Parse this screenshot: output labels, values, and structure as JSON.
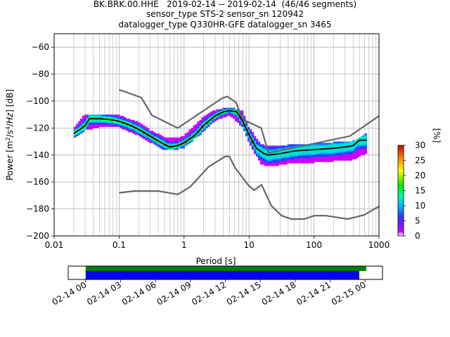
{
  "title": {
    "line1": "BK.BRK.00.HHE   2019-02-14 -- 2019-02-14  (46/46 segments)",
    "line2": "sensor_type STS-2 sensor_sn 120942",
    "line3": "datalogger_type Q330HR-GFE datalogger_sn 3465"
  },
  "chart_data": [
    {
      "type": "heatmap",
      "subtype": "probabilistic-power-spectral-density",
      "xlabel": "Period [s]",
      "ylabel": "Power [m^2/s^4/Hz] [dB]",
      "xscale": "log",
      "xlim": [
        0.01,
        1000
      ],
      "ylim": [
        -200,
        -50
      ],
      "xticks": [
        0.01,
        0.1,
        1,
        10,
        100,
        1000
      ],
      "xtick_labels": [
        "0.01",
        "0.1",
        "1",
        "10",
        "100",
        "1000"
      ],
      "yticks": [
        -200,
        -180,
        -160,
        -140,
        -120,
        -100,
        -80,
        -60
      ],
      "ytick_labels": [
        "−200",
        "−180",
        "−160",
        "−140",
        "−120",
        "−100",
        "−80",
        "−60"
      ],
      "grid": true,
      "colorbar": {
        "label": "[%]",
        "min": 0,
        "max": 30,
        "ticks": [
          0,
          5,
          10,
          15,
          20,
          25,
          30
        ],
        "colors": [
          "#ffffff",
          "#cc00ff",
          "#0000ff",
          "#00b4ff",
          "#00ff9a",
          "#00e600",
          "#ffff00",
          "#ff8c00",
          "#d00000"
        ]
      },
      "mode_curve": {
        "name": "mode",
        "color": "#000000",
        "points": [
          [
            0.02,
            -124
          ],
          [
            0.025,
            -121
          ],
          [
            0.03,
            -118
          ],
          [
            0.035,
            -113
          ],
          [
            0.05,
            -113
          ],
          [
            0.08,
            -114
          ],
          [
            0.1,
            -115
          ],
          [
            0.15,
            -118
          ],
          [
            0.2,
            -121
          ],
          [
            0.3,
            -126
          ],
          [
            0.45,
            -131
          ],
          [
            0.6,
            -134
          ],
          [
            0.8,
            -133
          ],
          [
            1.0,
            -131
          ],
          [
            1.5,
            -125
          ],
          [
            2.0,
            -118
          ],
          [
            3.0,
            -111
          ],
          [
            4.0,
            -108
          ],
          [
            5.0,
            -107
          ],
          [
            6.5,
            -108
          ],
          [
            8.0,
            -115
          ],
          [
            10.0,
            -125
          ],
          [
            13.0,
            -135
          ],
          [
            17.0,
            -139
          ],
          [
            20.0,
            -140
          ],
          [
            30.0,
            -139
          ],
          [
            50.0,
            -137
          ],
          [
            100.0,
            -136
          ],
          [
            200.0,
            -135
          ],
          [
            300.0,
            -134
          ],
          [
            400.0,
            -133
          ],
          [
            500.0,
            -129
          ],
          [
            650.0,
            -129
          ]
        ]
      },
      "density_band": {
        "name": "psd-density",
        "points": [
          [
            0.02,
            -127,
            -120
          ],
          [
            0.03,
            -121,
            -110
          ],
          [
            0.05,
            -119,
            -110
          ],
          [
            0.1,
            -119,
            -111
          ],
          [
            0.2,
            -125,
            -116
          ],
          [
            0.3,
            -130,
            -122
          ],
          [
            0.5,
            -136,
            -127
          ],
          [
            0.8,
            -135,
            -128
          ],
          [
            1.0,
            -134,
            -126
          ],
          [
            2.0,
            -122,
            -112
          ],
          [
            3.0,
            -114,
            -107
          ],
          [
            5.0,
            -110,
            -105
          ],
          [
            8.0,
            -119,
            -108
          ],
          [
            10.0,
            -130,
            -120
          ],
          [
            15.0,
            -146,
            -132
          ],
          [
            20.0,
            -148,
            -134
          ],
          [
            40.0,
            -146,
            -133
          ],
          [
            100.0,
            -145,
            -132
          ],
          [
            200.0,
            -144,
            -131
          ],
          [
            400.0,
            -143,
            -130
          ],
          [
            650.0,
            -138,
            -124
          ]
        ]
      },
      "noise_models": [
        {
          "name": "NHNM",
          "color": "#666666",
          "points": [
            [
              0.1,
              -91.5
            ],
            [
              0.22,
              -97.4
            ],
            [
              0.32,
              -110.5
            ],
            [
              0.8,
              -120.0
            ],
            [
              3.8,
              -98.0
            ],
            [
              4.6,
              -96.5
            ],
            [
              6.3,
              -101.0
            ],
            [
              7.9,
              -113.5
            ],
            [
              15.4,
              -120.0
            ],
            [
              20.0,
              -138.5
            ],
            [
              354.8,
              -126.0
            ],
            [
              1000.0,
              -111.0
            ]
          ]
        },
        {
          "name": "NLNM",
          "color": "#666666",
          "points": [
            [
              0.1,
              -168.0
            ],
            [
              0.17,
              -166.7
            ],
            [
              0.4,
              -166.7
            ],
            [
              0.8,
              -169.2
            ],
            [
              1.24,
              -163.7
            ],
            [
              2.4,
              -148.6
            ],
            [
              4.3,
              -141.1
            ],
            [
              5.0,
              -141.1
            ],
            [
              6.0,
              -149.0
            ],
            [
              10.0,
              -163.0
            ],
            [
              12.0,
              -166.0
            ],
            [
              15.6,
              -162.1
            ],
            [
              21.9,
              -177.5
            ],
            [
              31.6,
              -185.0
            ],
            [
              45.0,
              -187.5
            ],
            [
              70.0,
              -187.5
            ],
            [
              101.0,
              -185.0
            ],
            [
              154.0,
              -185.0
            ],
            [
              328.0,
              -187.5
            ],
            [
              600.0,
              -184.4
            ],
            [
              1000.0,
              -178.0
            ]
          ]
        }
      ]
    },
    {
      "type": "timeline",
      "subtype": "data-coverage",
      "xtick_labels": [
        "02-14 00",
        "02-14 03",
        "02-14 06",
        "02-14 09",
        "02-14 12",
        "02-14 15",
        "02-14 18",
        "02-14 21",
        "02-15 00"
      ],
      "xlim_hours": [
        -1.5,
        25.5
      ],
      "bars": [
        {
          "name": "data-available",
          "color": "#008000",
          "start_hour": 0.0,
          "end_hour": 24.1
        },
        {
          "name": "psd-used",
          "color": "#0000ff",
          "start_hour": 0.0,
          "end_hour": 23.5
        }
      ]
    }
  ]
}
